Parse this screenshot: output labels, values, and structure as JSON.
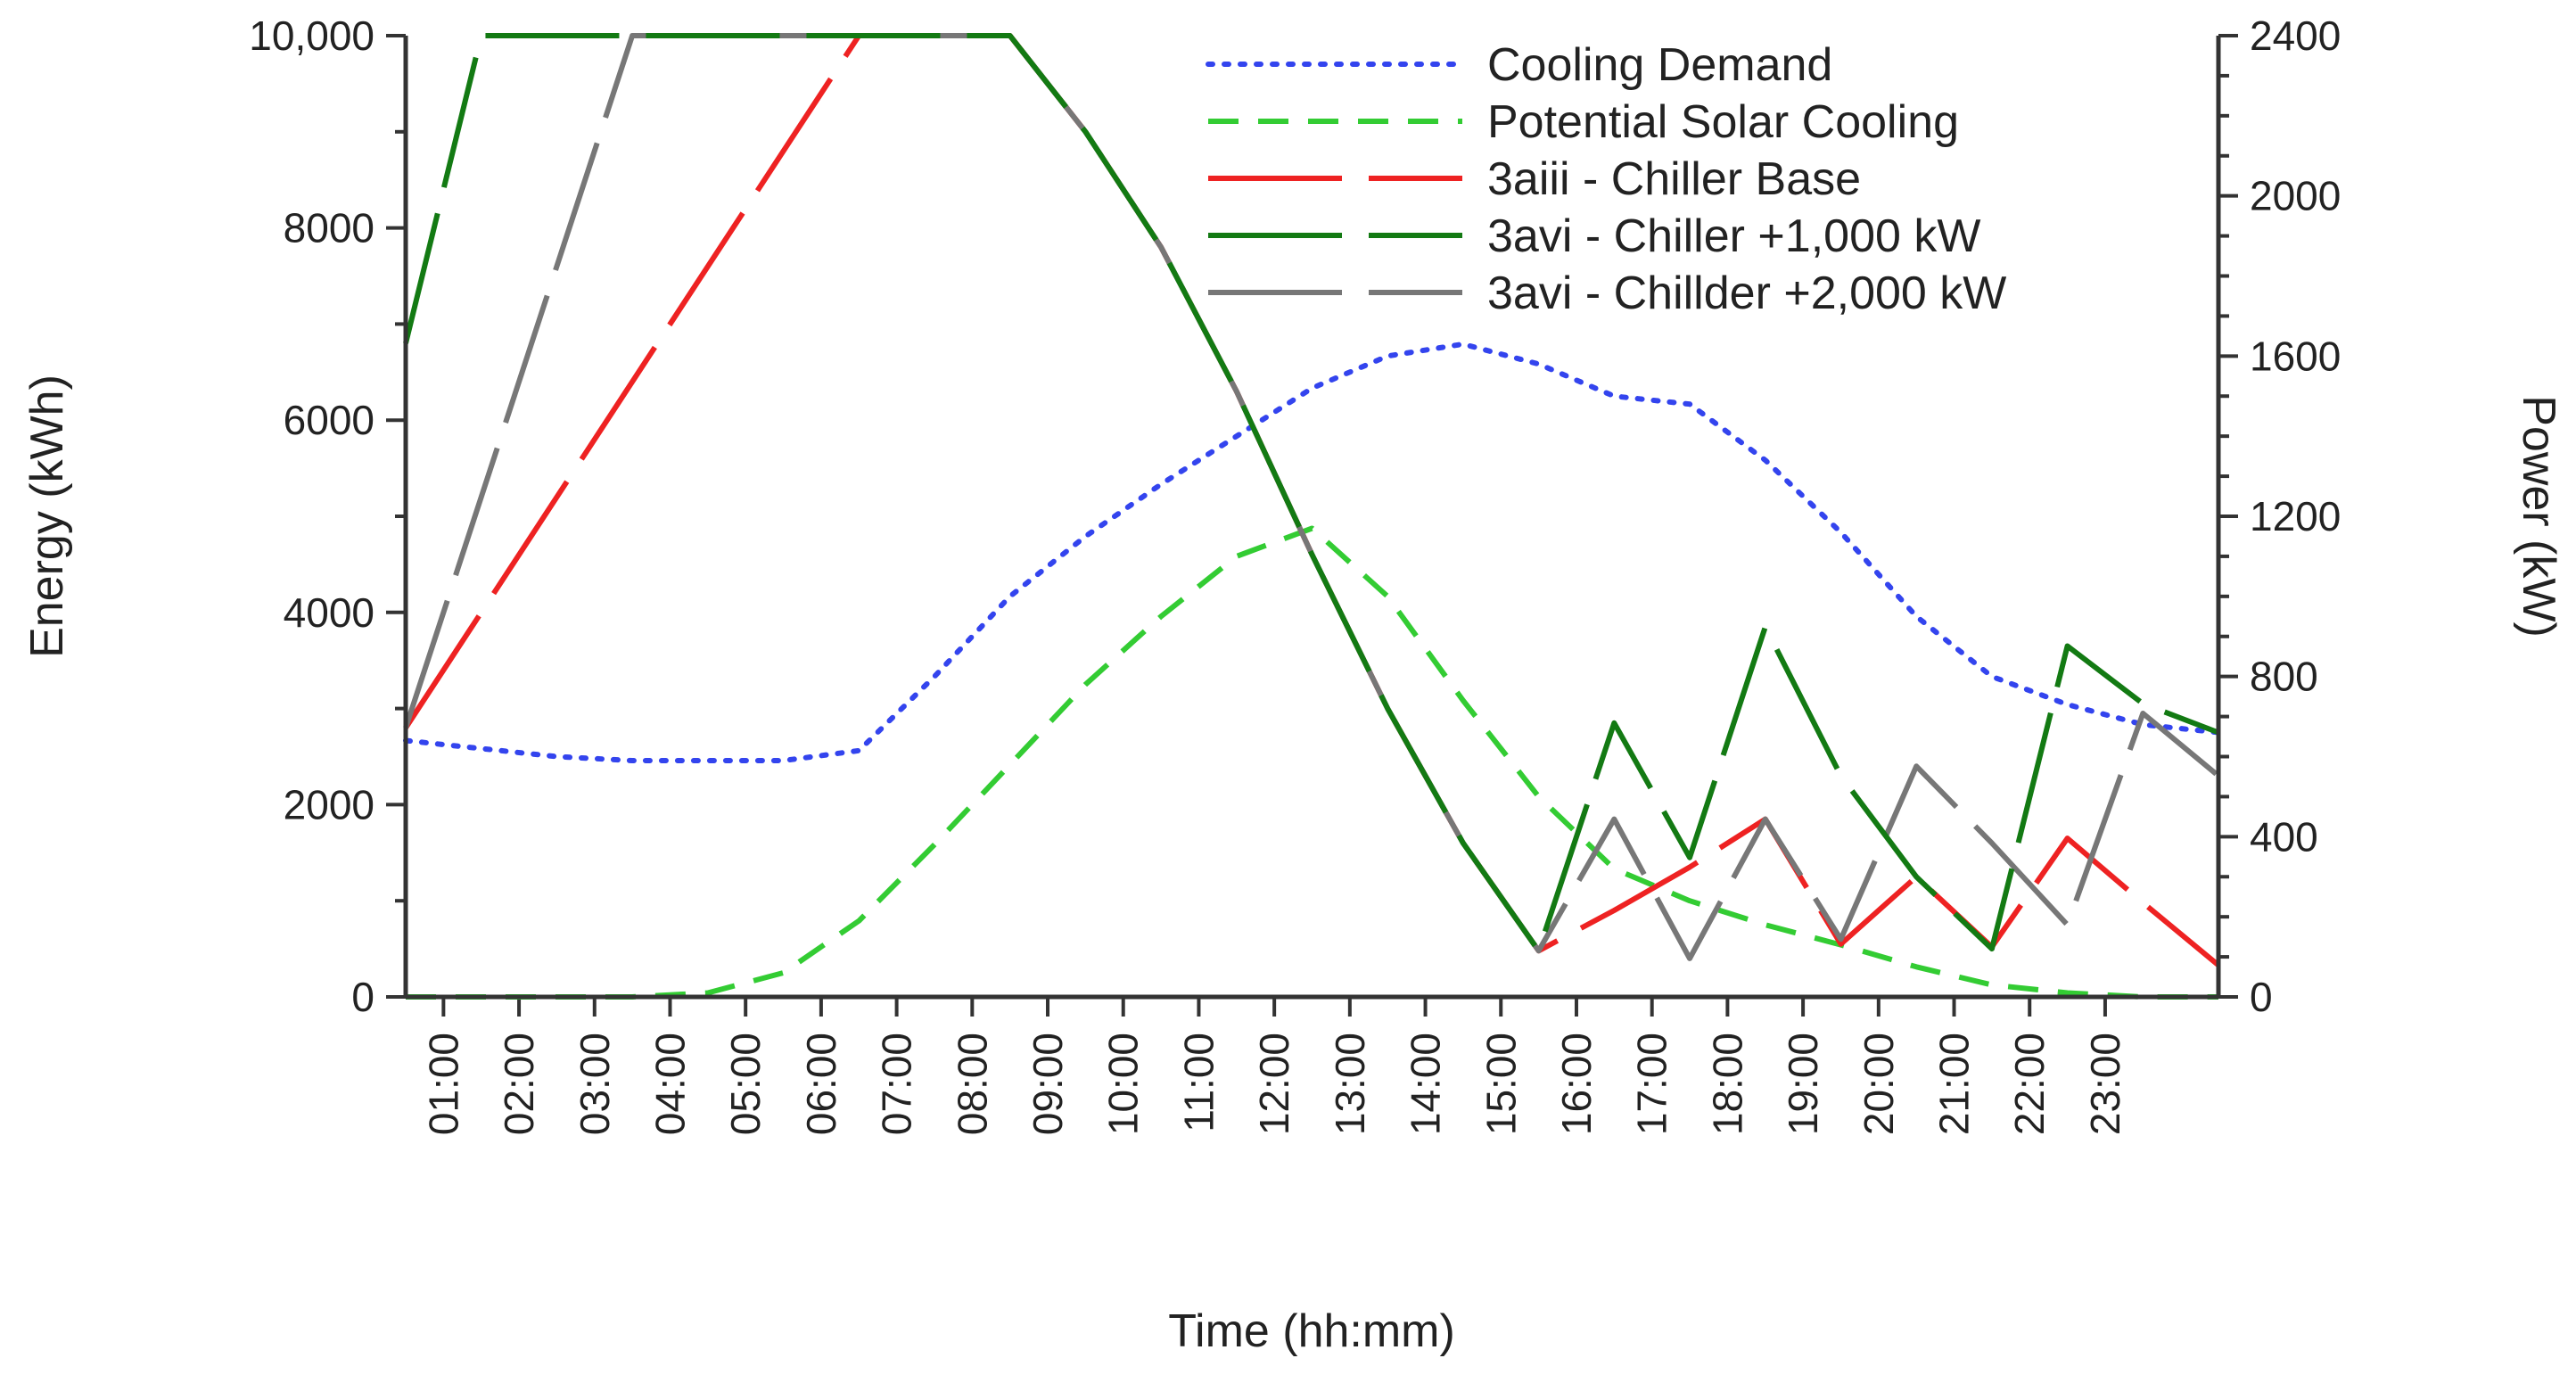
{
  "chart_data": {
    "type": "line",
    "title": "",
    "xlabel": "Time (hh:mm)",
    "ylabel_left": "Energy (kWh)",
    "ylabel_right": "Power (kW)",
    "x_range": [
      0.5,
      24.5
    ],
    "ylim_left": [
      0,
      10000
    ],
    "ylim_right": [
      0,
      2400
    ],
    "left_ticks": [
      0,
      2000,
      4000,
      6000,
      8000,
      10000
    ],
    "left_tick_labels": [
      "0",
      "2000",
      "4000",
      "6000",
      "8000",
      "10,000"
    ],
    "right_ticks": [
      0,
      400,
      800,
      1200,
      1600,
      2000,
      2400
    ],
    "right_tick_labels": [
      "0",
      "400",
      "800",
      "1200",
      "1600",
      "2000",
      "2400"
    ],
    "x_ticks": [
      1,
      2,
      3,
      4,
      5,
      6,
      7,
      8,
      9,
      10,
      11,
      12,
      13,
      14,
      15,
      16,
      17,
      18,
      19,
      20,
      21,
      22,
      23
    ],
    "x_tick_labels": [
      "01:00",
      "02:00",
      "03:00",
      "04:00",
      "05:00",
      "06:00",
      "07:00",
      "08:00",
      "09:00",
      "10:00",
      "11:00",
      "12:00",
      "13:00",
      "14:00",
      "15:00",
      "16:00",
      "17:00",
      "18:00",
      "19:00",
      "20:00",
      "21:00",
      "22:00",
      "23:00"
    ],
    "legend_position": "top-right",
    "series": [
      {
        "name": "Cooling Demand",
        "axis": "right",
        "color": "#3344ee",
        "style": "dotted",
        "points": [
          [
            0.5,
            640
          ],
          [
            1.5,
            620
          ],
          [
            2.5,
            600
          ],
          [
            3.5,
            590
          ],
          [
            4.5,
            590
          ],
          [
            5.5,
            590
          ],
          [
            6.5,
            615
          ],
          [
            7.5,
            800
          ],
          [
            8.5,
            1000
          ],
          [
            9.5,
            1150
          ],
          [
            10.5,
            1280
          ],
          [
            11.5,
            1400
          ],
          [
            12.5,
            1520
          ],
          [
            13.5,
            1600
          ],
          [
            14.5,
            1630
          ],
          [
            15.5,
            1580
          ],
          [
            16.5,
            1500
          ],
          [
            17.5,
            1480
          ],
          [
            18.5,
            1340
          ],
          [
            19.5,
            1160
          ],
          [
            20.5,
            950
          ],
          [
            21.5,
            800
          ],
          [
            22.5,
            730
          ],
          [
            23.5,
            680
          ],
          [
            24.5,
            660
          ]
        ]
      },
      {
        "name": "Potential Solar Cooling",
        "axis": "right",
        "color": "#33cc33",
        "style": "dashed",
        "points": [
          [
            0.5,
            0
          ],
          [
            1.5,
            0
          ],
          [
            2.5,
            0
          ],
          [
            3.5,
            0
          ],
          [
            4.5,
            10
          ],
          [
            5.5,
            60
          ],
          [
            6.5,
            190
          ],
          [
            7.5,
            380
          ],
          [
            8.5,
            580
          ],
          [
            9.5,
            780
          ],
          [
            10.5,
            950
          ],
          [
            11.5,
            1100
          ],
          [
            12.5,
            1170
          ],
          [
            13.5,
            1000
          ],
          [
            14.5,
            740
          ],
          [
            15.5,
            500
          ],
          [
            16.5,
            320
          ],
          [
            17.5,
            240
          ],
          [
            18.5,
            180
          ],
          [
            19.5,
            130
          ],
          [
            20.5,
            75
          ],
          [
            21.5,
            30
          ],
          [
            22.5,
            10
          ],
          [
            23.5,
            0
          ],
          [
            24.5,
            0
          ]
        ]
      },
      {
        "name": "3aiii - Chiller Base",
        "axis": "left",
        "color": "#ee2222",
        "style": "long-dash",
        "points": [
          [
            0.5,
            2800
          ],
          [
            6.5,
            10000
          ],
          [
            8.5,
            10000
          ],
          [
            9.5,
            9000
          ],
          [
            10.5,
            7800
          ],
          [
            11.5,
            6300
          ],
          [
            12.5,
            4600
          ],
          [
            13.5,
            3000
          ],
          [
            14.5,
            1600
          ],
          [
            15.5,
            480
          ],
          [
            16.5,
            900
          ],
          [
            17.5,
            1350
          ],
          [
            18.5,
            1850
          ],
          [
            19.5,
            550
          ],
          [
            20.5,
            1250
          ],
          [
            21.5,
            520
          ],
          [
            22.5,
            1650
          ],
          [
            23.5,
            980
          ],
          [
            24.5,
            330
          ]
        ]
      },
      {
        "name": "3avi - Chiller +1,000 kW",
        "axis": "left",
        "color": "#137a13",
        "style": "long-dash",
        "points": [
          [
            0.5,
            6800
          ],
          [
            1.5,
            10000
          ],
          [
            8.5,
            10000
          ],
          [
            9.5,
            9000
          ],
          [
            10.5,
            7800
          ],
          [
            11.5,
            6300
          ],
          [
            12.5,
            4600
          ],
          [
            13.5,
            3000
          ],
          [
            14.5,
            1600
          ],
          [
            15.5,
            480
          ],
          [
            16.5,
            2850
          ],
          [
            17.5,
            1450
          ],
          [
            18.5,
            3850
          ],
          [
            19.5,
            2300
          ],
          [
            20.5,
            1250
          ],
          [
            21.5,
            500
          ],
          [
            22.5,
            3650
          ],
          [
            23.5,
            3050
          ],
          [
            24.5,
            2750
          ]
        ]
      },
      {
        "name": "3avi - Chillder +2,000 kW",
        "axis": "left",
        "color": "#777777",
        "style": "long-dash",
        "points": [
          [
            0.5,
            2800
          ],
          [
            3.5,
            10000
          ],
          [
            8.5,
            10000
          ],
          [
            9.5,
            9000
          ],
          [
            10.5,
            7800
          ],
          [
            11.5,
            6300
          ],
          [
            12.5,
            4600
          ],
          [
            13.5,
            3000
          ],
          [
            14.5,
            1600
          ],
          [
            15.5,
            480
          ],
          [
            16.5,
            1850
          ],
          [
            17.5,
            400
          ],
          [
            18.5,
            1850
          ],
          [
            19.5,
            600
          ],
          [
            20.5,
            2400
          ],
          [
            21.5,
            1600
          ],
          [
            22.5,
            750
          ],
          [
            23.5,
            2950
          ],
          [
            24.5,
            2300
          ]
        ]
      }
    ]
  }
}
